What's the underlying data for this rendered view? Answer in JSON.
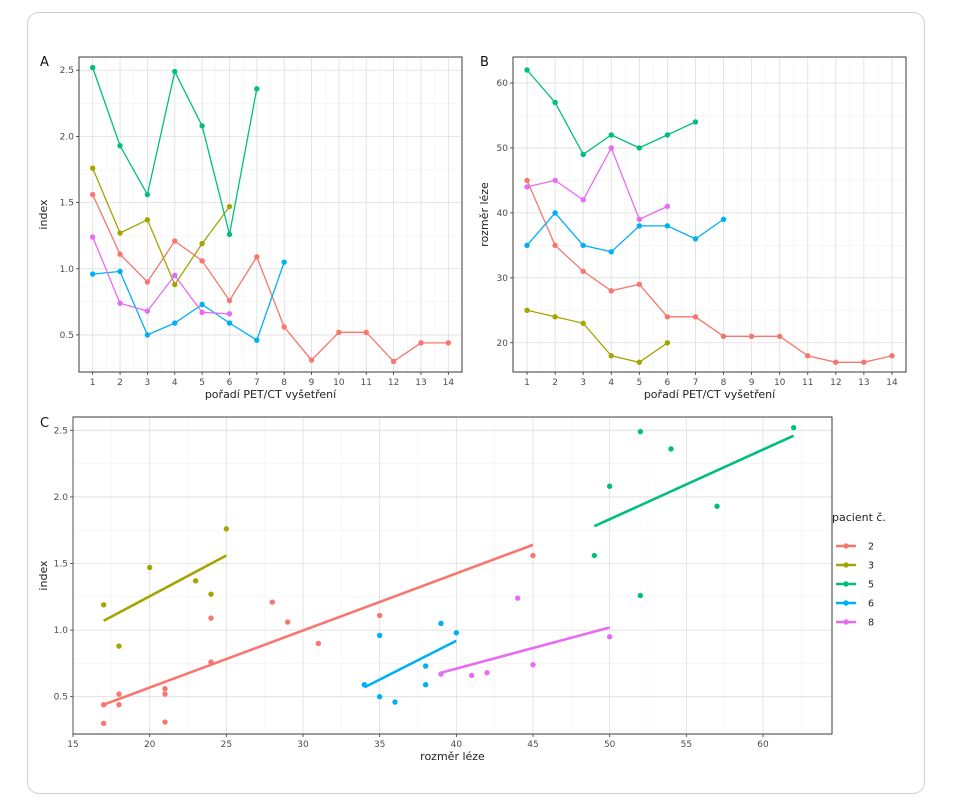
{
  "legend": {
    "title": "pacient č.",
    "entries": [
      {
        "label": "2",
        "color": "#F8766D"
      },
      {
        "label": "3",
        "color": "#A3A500"
      },
      {
        "label": "5",
        "color": "#00BF7D"
      },
      {
        "label": "6",
        "color": "#00B0F6"
      },
      {
        "label": "8",
        "color": "#E76BF3"
      }
    ],
    "position": "right"
  },
  "chart_data": [
    {
      "panel": "A",
      "type": "line",
      "xlabel": "pořadí PET/CT vyšetření",
      "ylabel": "index",
      "xlim": [
        0.5,
        14.5
      ],
      "ylim": [
        0.22,
        2.6
      ],
      "xticks": [
        1,
        2,
        3,
        4,
        5,
        6,
        7,
        8,
        9,
        10,
        11,
        12,
        13,
        14
      ],
      "yticks": [
        0.5,
        1.0,
        1.5,
        2.0,
        2.5
      ],
      "ytick_labels": [
        "0.5",
        "1.0",
        "1.5",
        "2.0",
        "2.5"
      ],
      "grid": true,
      "series": [
        {
          "name": "2",
          "x": [
            1,
            2,
            3,
            4,
            5,
            6,
            7,
            8,
            9,
            10,
            11,
            12,
            13,
            14
          ],
          "y": [
            1.56,
            1.11,
            0.9,
            1.21,
            1.06,
            0.76,
            1.09,
            0.56,
            0.31,
            0.52,
            0.52,
            0.3,
            0.44,
            0.44
          ]
        },
        {
          "name": "3",
          "x": [
            1,
            2,
            3,
            4,
            5,
            6
          ],
          "y": [
            1.76,
            1.27,
            1.37,
            0.88,
            1.19,
            1.47
          ]
        },
        {
          "name": "5",
          "x": [
            1,
            2,
            3,
            4,
            5,
            6,
            7
          ],
          "y": [
            2.52,
            1.93,
            1.56,
            2.49,
            2.08,
            1.26,
            2.36
          ]
        },
        {
          "name": "6",
          "x": [
            1,
            2,
            3,
            4,
            5,
            6,
            7,
            8
          ],
          "y": [
            0.96,
            0.98,
            0.5,
            0.59,
            0.73,
            0.59,
            0.46,
            1.05
          ]
        },
        {
          "name": "8",
          "x": [
            1,
            2,
            3,
            4,
            5,
            6
          ],
          "y": [
            1.24,
            0.74,
            0.68,
            0.95,
            0.67,
            0.66
          ]
        }
      ]
    },
    {
      "panel": "B",
      "type": "line",
      "xlabel": "pořadí PET/CT vyšetření",
      "ylabel": "rozměr léze",
      "xlim": [
        0.5,
        14.5
      ],
      "ylim": [
        15.5,
        64
      ],
      "xticks": [
        1,
        2,
        3,
        4,
        5,
        6,
        7,
        8,
        9,
        10,
        11,
        12,
        13,
        14
      ],
      "yticks": [
        20,
        30,
        40,
        50,
        60
      ],
      "ytick_labels": [
        "20",
        "30",
        "40",
        "50",
        "60"
      ],
      "grid": true,
      "series": [
        {
          "name": "2",
          "x": [
            1,
            2,
            3,
            4,
            5,
            6,
            7,
            8,
            9,
            10,
            11,
            12,
            13,
            14
          ],
          "y": [
            45,
            35,
            31,
            28,
            29,
            24,
            24,
            21,
            21,
            21,
            18,
            17,
            17,
            18
          ]
        },
        {
          "name": "3",
          "x": [
            1,
            2,
            3,
            4,
            5,
            6
          ],
          "y": [
            25,
            24,
            23,
            18,
            17,
            20
          ]
        },
        {
          "name": "5",
          "x": [
            1,
            2,
            3,
            4,
            5,
            6,
            7
          ],
          "y": [
            62,
            57,
            49,
            52,
            50,
            52,
            54
          ]
        },
        {
          "name": "6",
          "x": [
            1,
            2,
            3,
            4,
            5,
            6,
            7,
            8
          ],
          "y": [
            35,
            40,
            35,
            34,
            38,
            38,
            36,
            39
          ]
        },
        {
          "name": "8",
          "x": [
            1,
            2,
            3,
            4,
            5,
            6
          ],
          "y": [
            44,
            45,
            42,
            50,
            39,
            41
          ]
        }
      ]
    },
    {
      "panel": "C",
      "type": "scatter",
      "xlabel": "rozměr léze",
      "ylabel": "index",
      "xlim": [
        15,
        64.5
      ],
      "ylim": [
        0.22,
        2.6
      ],
      "xticks": [
        15,
        20,
        25,
        30,
        35,
        40,
        45,
        50,
        55,
        60
      ],
      "yticks": [
        0.5,
        1.0,
        1.5,
        2.0,
        2.5
      ],
      "ytick_labels": [
        "0.5",
        "1.0",
        "1.5",
        "2.0",
        "2.5"
      ],
      "grid": true,
      "series": [
        {
          "name": "2",
          "x": [
            45,
            35,
            31,
            28,
            29,
            24,
            24,
            21,
            21,
            21,
            18,
            17,
            17,
            18
          ],
          "y": [
            1.56,
            1.11,
            0.9,
            1.21,
            1.06,
            0.76,
            1.09,
            0.56,
            0.31,
            0.52,
            0.52,
            0.3,
            0.44,
            0.44
          ],
          "fit": [
            [
              17,
              0.44
            ],
            [
              45,
              1.64
            ]
          ]
        },
        {
          "name": "3",
          "x": [
            25,
            24,
            23,
            18,
            17,
            20
          ],
          "y": [
            1.76,
            1.27,
            1.37,
            0.88,
            1.19,
            1.47
          ],
          "fit": [
            [
              17,
              1.07
            ],
            [
              25,
              1.56
            ]
          ]
        },
        {
          "name": "5",
          "x": [
            62,
            57,
            49,
            52,
            50,
            52,
            54
          ],
          "y": [
            2.52,
            1.93,
            1.56,
            2.49,
            2.08,
            1.26,
            2.36
          ],
          "fit": [
            [
              49,
              1.78
            ],
            [
              62,
              2.46
            ]
          ]
        },
        {
          "name": "6",
          "x": [
            35,
            40,
            35,
            34,
            38,
            38,
            36,
            39
          ],
          "y": [
            0.96,
            0.98,
            0.5,
            0.59,
            0.73,
            0.59,
            0.46,
            1.05
          ],
          "fit": [
            [
              34,
              0.57
            ],
            [
              40,
              0.92
            ]
          ]
        },
        {
          "name": "8",
          "x": [
            44,
            45,
            42,
            50,
            39,
            41
          ],
          "y": [
            1.24,
            0.74,
            0.68,
            0.95,
            0.67,
            0.66
          ],
          "fit": [
            [
              39,
              0.68
            ],
            [
              50,
              1.02
            ]
          ]
        }
      ]
    }
  ]
}
